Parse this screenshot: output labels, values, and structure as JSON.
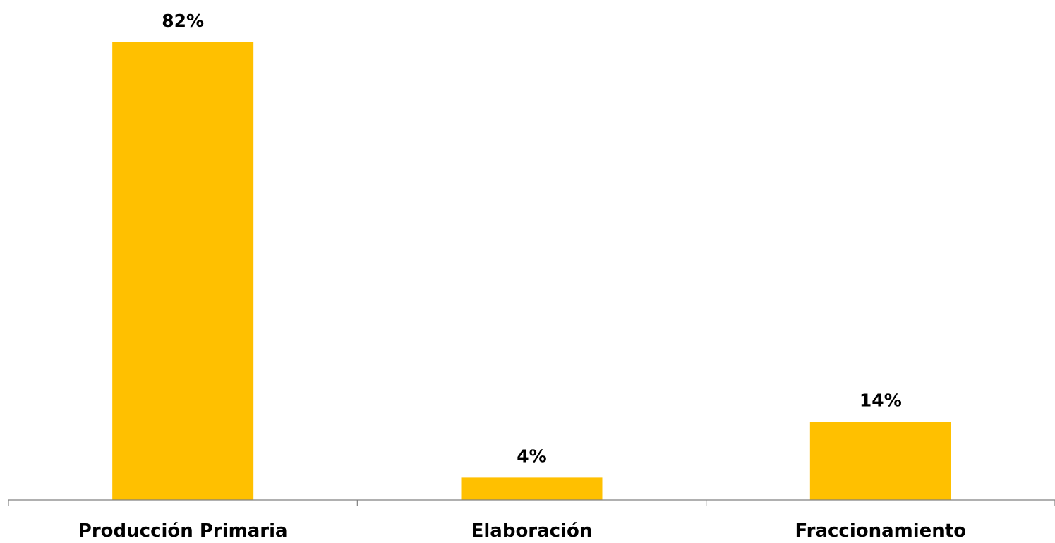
{
  "chart_data": {
    "type": "bar",
    "categories": [
      "Producción Primaria",
      "Elaboración",
      "Fraccionamiento"
    ],
    "values": [
      82,
      4,
      14
    ],
    "data_labels": [
      "82%",
      "4%",
      "14%"
    ],
    "title": "",
    "xlabel": "",
    "ylabel": "",
    "ylim": [
      0,
      82
    ],
    "grid": false,
    "legend": "none",
    "value_axis_visible": false,
    "bar_color": "#FFC000",
    "axis_color": "#808080"
  }
}
